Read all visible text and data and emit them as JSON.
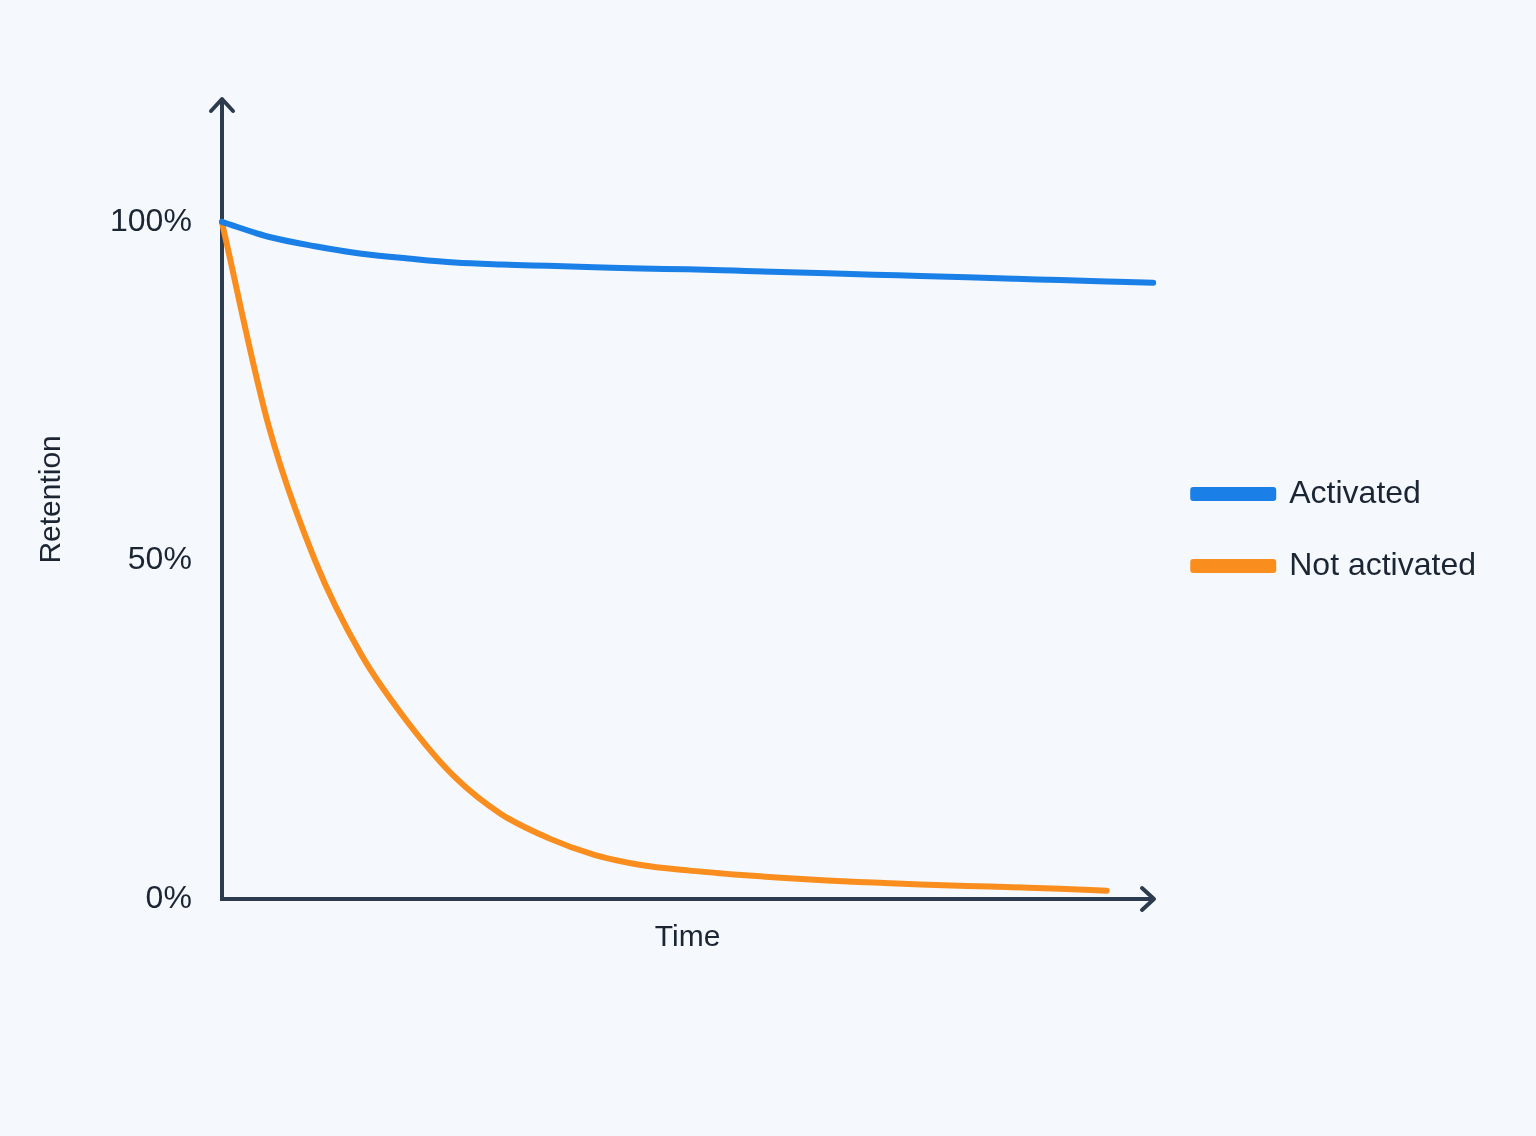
{
  "chart_data": {
    "type": "line",
    "xlabel": "Time",
    "ylabel": "Retention",
    "categories": [
      null,
      null,
      null,
      null,
      null,
      null,
      null,
      null,
      null,
      null,
      null,
      null,
      null,
      null,
      null,
      null,
      null,
      null,
      null,
      null,
      null
    ],
    "series": [
      {
        "name": "Activated",
        "color": "#1a7fe6",
        "values": [
          100,
          97.8,
          96.4,
          95.3,
          94.6,
          94.0,
          93.7,
          93.5,
          93.3,
          93.1,
          93.0,
          92.8,
          92.6,
          92.4,
          92.2,
          92.0,
          91.8,
          91.6,
          91.4,
          91.2,
          91.0
        ]
      },
      {
        "name": "Not activated",
        "color": "#f98e1f",
        "values": [
          100,
          70,
          50,
          36,
          26,
          18,
          12.5,
          9,
          6.5,
          5,
          4.2,
          3.6,
          3.1,
          2.7,
          2.4,
          2.1,
          1.9,
          1.7,
          1.5,
          1.2,
          null
        ]
      }
    ],
    "ylim": [
      0,
      118
    ],
    "yticks": [
      {
        "value": 0,
        "label": "0%"
      },
      {
        "value": 50,
        "label": "50%"
      },
      {
        "value": 100,
        "label": "100%"
      }
    ],
    "grid": false,
    "legend": "right",
    "marker": "none",
    "line_style": "solid"
  }
}
